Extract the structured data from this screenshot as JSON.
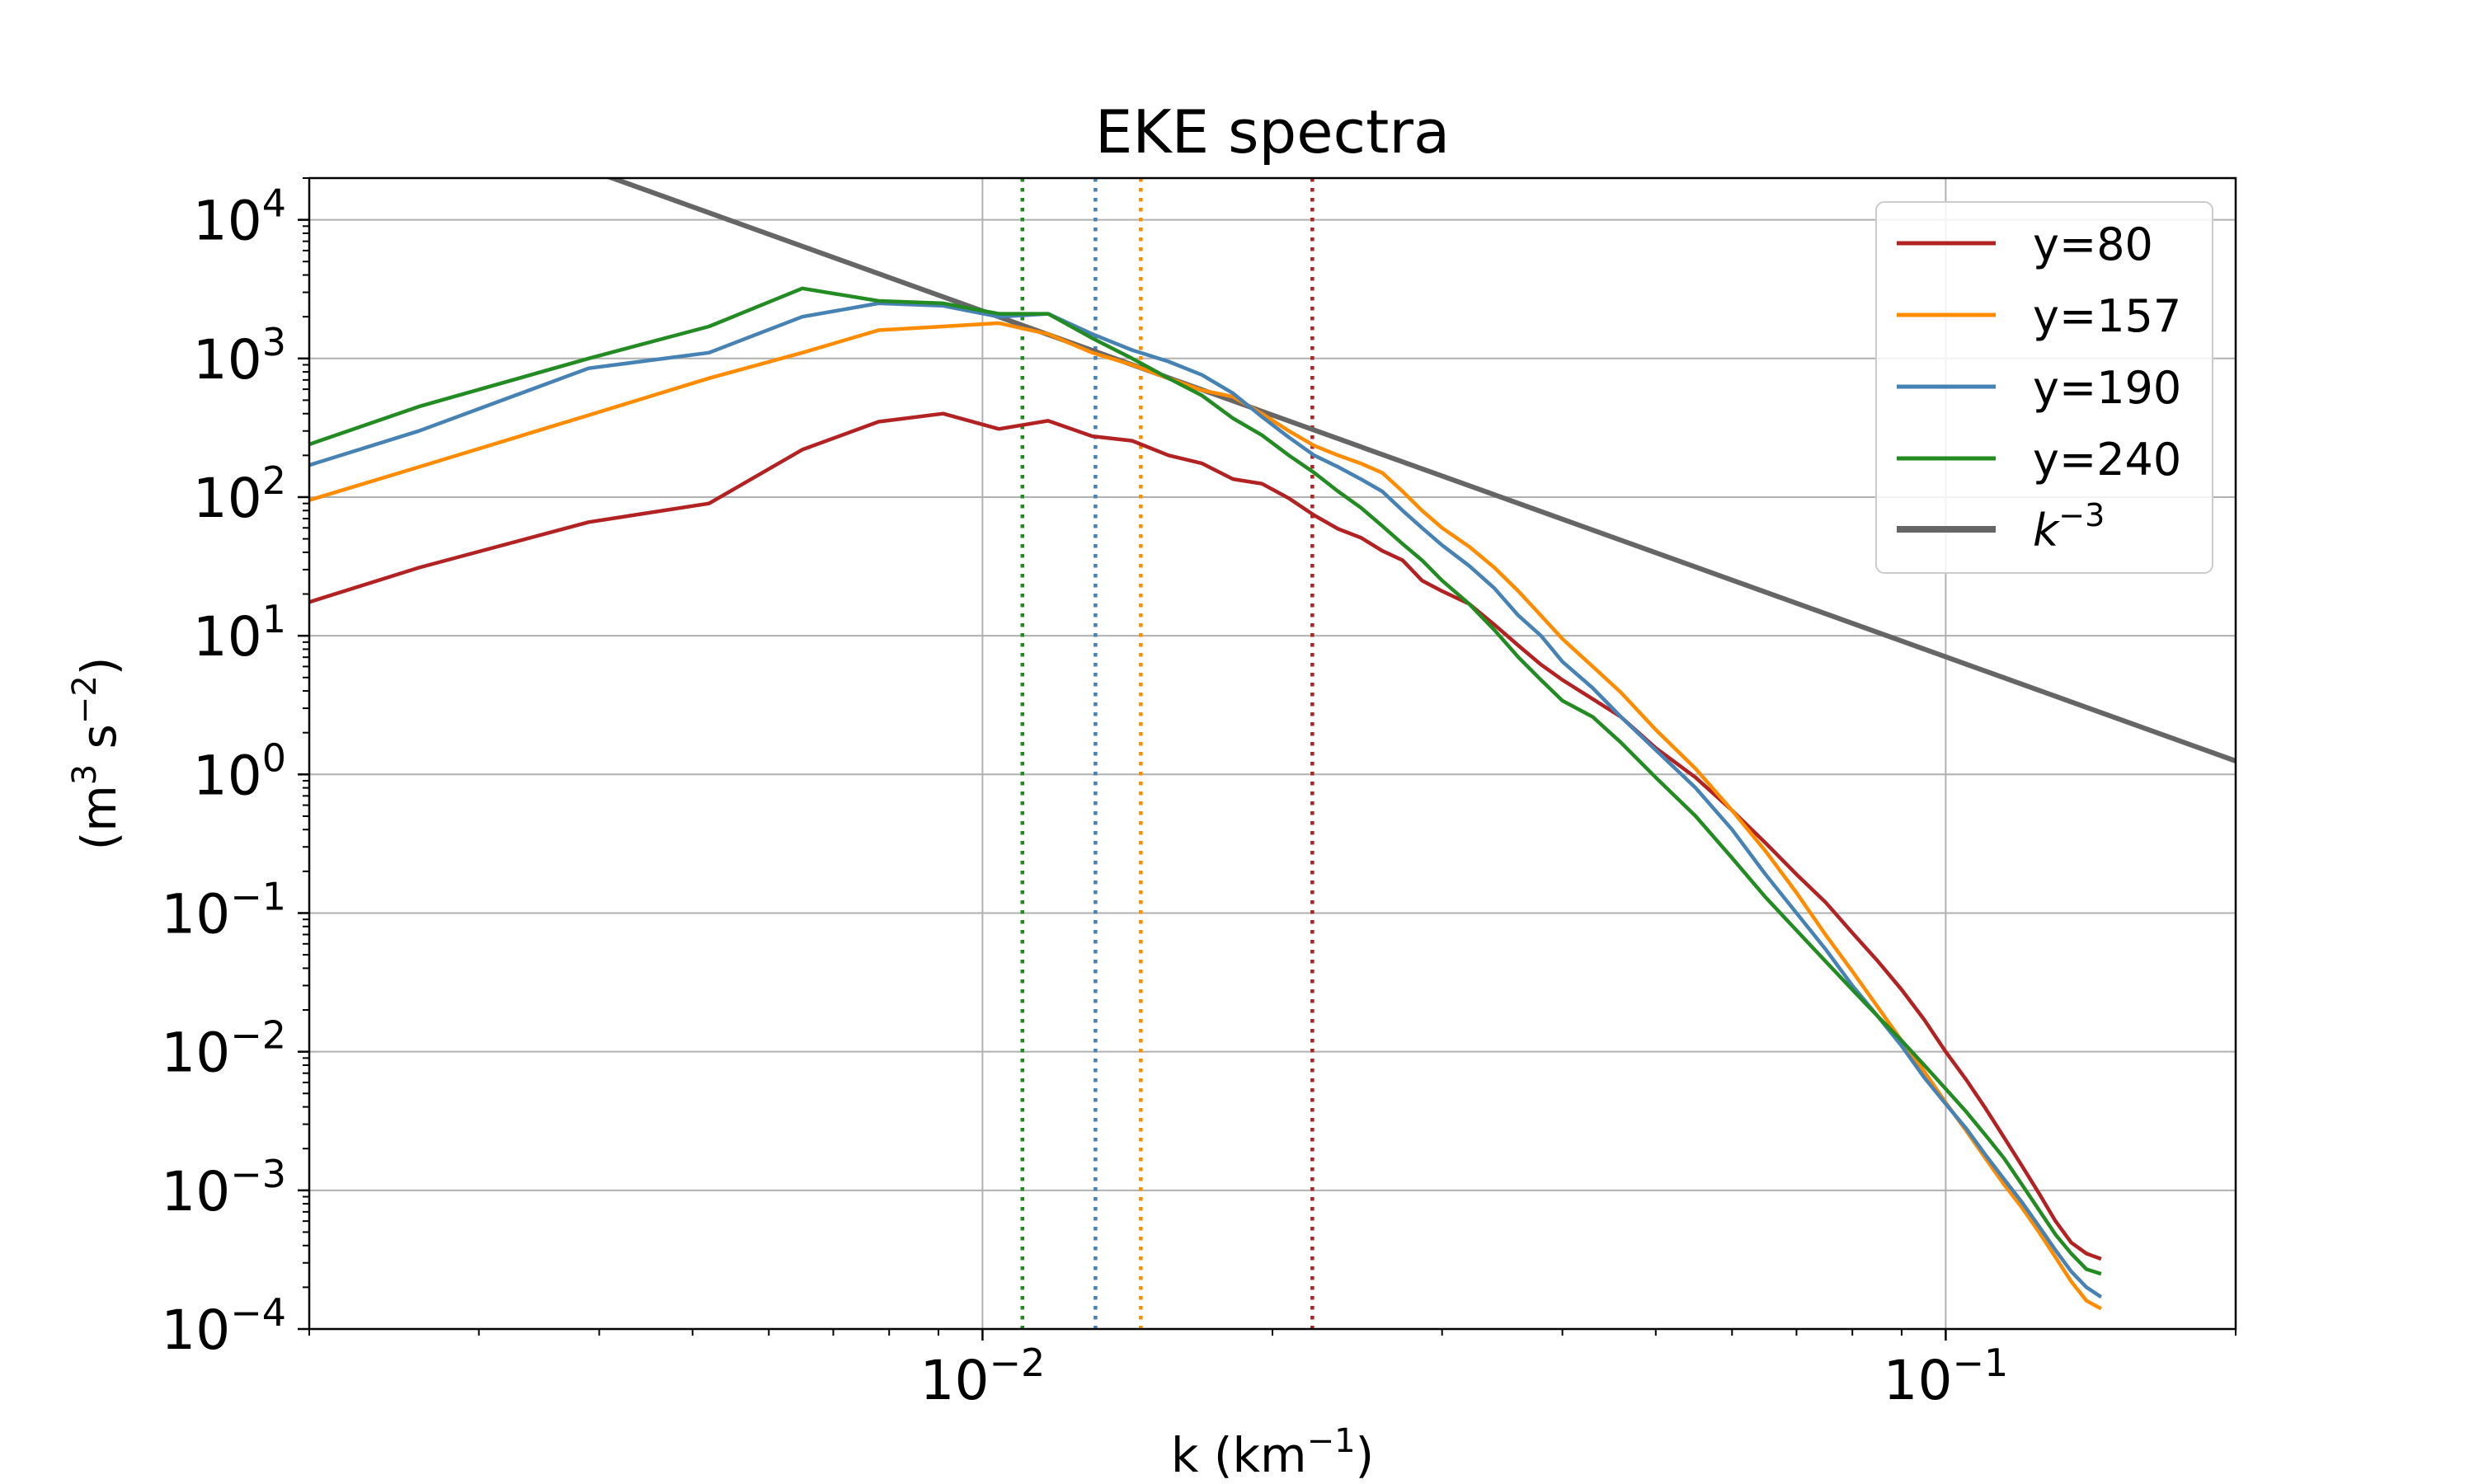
{
  "chart_data": {
    "type": "line",
    "title": "EKE spectra",
    "xlabel": {
      "base": "k (km",
      "exp": "−1",
      "tail": ")"
    },
    "ylabel": {
      "pre": "(m",
      "exp1": "3",
      "mid": " s",
      "exp2": "−2",
      "tail": ")"
    },
    "xscale": "log",
    "yscale": "log",
    "xlim": [
      0.002,
      0.2
    ],
    "ylim": [
      0.0001,
      20000
    ],
    "grid": true,
    "legend_position": "top-right",
    "x_ticks": [
      {
        "value": 0.01,
        "base": "10",
        "exp": "−2"
      },
      {
        "value": 0.1,
        "base": "10",
        "exp": "−1"
      }
    ],
    "y_ticks": [
      {
        "value": 10000,
        "base": "10",
        "exp": "4"
      },
      {
        "value": 1000,
        "base": "10",
        "exp": "3"
      },
      {
        "value": 100,
        "base": "10",
        "exp": "2"
      },
      {
        "value": 10,
        "base": "10",
        "exp": "1"
      },
      {
        "value": 1,
        "base": "10",
        "exp": "0"
      },
      {
        "value": 0.1,
        "base": "10",
        "exp": "−1"
      },
      {
        "value": 0.01,
        "base": "10",
        "exp": "−2"
      },
      {
        "value": 0.001,
        "base": "10",
        "exp": "−3"
      },
      {
        "value": 0.0001,
        "base": "10",
        "exp": "−4"
      }
    ],
    "series": [
      {
        "name": "y=80",
        "color": "#b22222",
        "points": [
          [
            0.002,
            17.5
          ],
          [
            0.0026,
            31
          ],
          [
            0.0039,
            66
          ],
          [
            0.0052,
            90
          ],
          [
            0.0065,
            220
          ],
          [
            0.0078,
            350
          ],
          [
            0.0091,
            400
          ],
          [
            0.0104,
            310
          ],
          [
            0.0117,
            355
          ],
          [
            0.013,
            275
          ],
          [
            0.0143,
            255
          ],
          [
            0.0156,
            200
          ],
          [
            0.0169,
            175
          ],
          [
            0.0182,
            135
          ],
          [
            0.0195,
            125
          ],
          [
            0.0208,
            98
          ],
          [
            0.0221,
            74
          ],
          [
            0.0234,
            59
          ],
          [
            0.0247,
            51
          ],
          [
            0.026,
            41
          ],
          [
            0.0273,
            35
          ],
          [
            0.0286,
            25
          ],
          [
            0.03,
            21
          ],
          [
            0.032,
            17
          ],
          [
            0.034,
            12
          ],
          [
            0.036,
            8.5
          ],
          [
            0.038,
            6.2
          ],
          [
            0.04,
            4.8
          ],
          [
            0.043,
            3.5
          ],
          [
            0.046,
            2.6
          ],
          [
            0.05,
            1.55
          ],
          [
            0.055,
            0.95
          ],
          [
            0.06,
            0.55
          ],
          [
            0.065,
            0.32
          ],
          [
            0.07,
            0.19
          ],
          [
            0.075,
            0.12
          ],
          [
            0.08,
            0.072
          ],
          [
            0.085,
            0.045
          ],
          [
            0.09,
            0.028
          ],
          [
            0.095,
            0.017
          ],
          [
            0.1,
            0.01
          ],
          [
            0.105,
            0.0063
          ],
          [
            0.11,
            0.0039
          ],
          [
            0.115,
            0.0024
          ],
          [
            0.12,
            0.0015
          ],
          [
            0.125,
            0.00095
          ],
          [
            0.13,
            0.0006
          ],
          [
            0.135,
            0.00042
          ],
          [
            0.14,
            0.00035
          ],
          [
            0.145,
            0.00032
          ]
        ]
      },
      {
        "name": "y=157",
        "color": "#ff8c00",
        "points": [
          [
            0.002,
            95
          ],
          [
            0.0026,
            165
          ],
          [
            0.0039,
            390
          ],
          [
            0.0052,
            720
          ],
          [
            0.0065,
            1100
          ],
          [
            0.0078,
            1600
          ],
          [
            0.0091,
            1700
          ],
          [
            0.0104,
            1800
          ],
          [
            0.0117,
            1500
          ],
          [
            0.013,
            1100
          ],
          [
            0.0143,
            900
          ],
          [
            0.0156,
            720
          ],
          [
            0.0169,
            590
          ],
          [
            0.0182,
            530
          ],
          [
            0.0195,
            400
          ],
          [
            0.0208,
            300
          ],
          [
            0.0221,
            235
          ],
          [
            0.0234,
            200
          ],
          [
            0.0247,
            175
          ],
          [
            0.026,
            150
          ],
          [
            0.0273,
            110
          ],
          [
            0.0286,
            80
          ],
          [
            0.03,
            60
          ],
          [
            0.032,
            44
          ],
          [
            0.034,
            31
          ],
          [
            0.036,
            21
          ],
          [
            0.038,
            14
          ],
          [
            0.04,
            9.5
          ],
          [
            0.043,
            6
          ],
          [
            0.046,
            3.9
          ],
          [
            0.05,
            2.1
          ],
          [
            0.055,
            1.1
          ],
          [
            0.06,
            0.55
          ],
          [
            0.065,
            0.28
          ],
          [
            0.07,
            0.14
          ],
          [
            0.075,
            0.07
          ],
          [
            0.08,
            0.038
          ],
          [
            0.085,
            0.021
          ],
          [
            0.09,
            0.012
          ],
          [
            0.095,
            0.0072
          ],
          [
            0.1,
            0.0043
          ],
          [
            0.105,
            0.0027
          ],
          [
            0.11,
            0.0017
          ],
          [
            0.115,
            0.0011
          ],
          [
            0.12,
            0.00075
          ],
          [
            0.125,
            0.0005
          ],
          [
            0.13,
            0.00033
          ],
          [
            0.135,
            0.00022
          ],
          [
            0.14,
            0.00016
          ],
          [
            0.145,
            0.00014
          ]
        ]
      },
      {
        "name": "y=190",
        "color": "#4682b4",
        "points": [
          [
            0.002,
            170
          ],
          [
            0.0026,
            300
          ],
          [
            0.0039,
            850
          ],
          [
            0.0052,
            1100
          ],
          [
            0.0065,
            2000
          ],
          [
            0.0078,
            2500
          ],
          [
            0.0091,
            2400
          ],
          [
            0.0104,
            2000
          ],
          [
            0.0117,
            2100
          ],
          [
            0.013,
            1500
          ],
          [
            0.0143,
            1150
          ],
          [
            0.0156,
            950
          ],
          [
            0.0169,
            760
          ],
          [
            0.0182,
            560
          ],
          [
            0.0195,
            380
          ],
          [
            0.0208,
            270
          ],
          [
            0.0221,
            200
          ],
          [
            0.0234,
            165
          ],
          [
            0.0247,
            135
          ],
          [
            0.026,
            110
          ],
          [
            0.0273,
            80
          ],
          [
            0.0286,
            60
          ],
          [
            0.03,
            45
          ],
          [
            0.032,
            32
          ],
          [
            0.034,
            22
          ],
          [
            0.036,
            14
          ],
          [
            0.038,
            10
          ],
          [
            0.04,
            6.5
          ],
          [
            0.043,
            4.2
          ],
          [
            0.046,
            2.6
          ],
          [
            0.05,
            1.5
          ],
          [
            0.055,
            0.8
          ],
          [
            0.06,
            0.4
          ],
          [
            0.065,
            0.19
          ],
          [
            0.07,
            0.1
          ],
          [
            0.075,
            0.055
          ],
          [
            0.08,
            0.03
          ],
          [
            0.085,
            0.018
          ],
          [
            0.09,
            0.011
          ],
          [
            0.095,
            0.0065
          ],
          [
            0.1,
            0.0042
          ],
          [
            0.105,
            0.0028
          ],
          [
            0.11,
            0.0018
          ],
          [
            0.115,
            0.0012
          ],
          [
            0.12,
            0.00082
          ],
          [
            0.125,
            0.00055
          ],
          [
            0.13,
            0.00037
          ],
          [
            0.135,
            0.00026
          ],
          [
            0.14,
            0.0002
          ],
          [
            0.145,
            0.00017
          ]
        ]
      },
      {
        "name": "y=240",
        "color": "#228b22",
        "points": [
          [
            0.002,
            240
          ],
          [
            0.0026,
            450
          ],
          [
            0.0039,
            1000
          ],
          [
            0.0052,
            1700
          ],
          [
            0.0065,
            3200
          ],
          [
            0.0078,
            2600
          ],
          [
            0.0091,
            2500
          ],
          [
            0.0104,
            2100
          ],
          [
            0.0117,
            2100
          ],
          [
            0.013,
            1400
          ],
          [
            0.0143,
            1000
          ],
          [
            0.0156,
            720
          ],
          [
            0.0169,
            540
          ],
          [
            0.0182,
            370
          ],
          [
            0.0195,
            280
          ],
          [
            0.0208,
            200
          ],
          [
            0.0221,
            150
          ],
          [
            0.0234,
            110
          ],
          [
            0.0247,
            84
          ],
          [
            0.026,
            62
          ],
          [
            0.0273,
            46
          ],
          [
            0.0286,
            35
          ],
          [
            0.03,
            25
          ],
          [
            0.032,
            17
          ],
          [
            0.034,
            11
          ],
          [
            0.036,
            7
          ],
          [
            0.038,
            4.8
          ],
          [
            0.04,
            3.4
          ],
          [
            0.043,
            2.6
          ],
          [
            0.046,
            1.7
          ],
          [
            0.05,
            0.95
          ],
          [
            0.055,
            0.5
          ],
          [
            0.06,
            0.25
          ],
          [
            0.065,
            0.13
          ],
          [
            0.07,
            0.075
          ],
          [
            0.075,
            0.045
          ],
          [
            0.08,
            0.028
          ],
          [
            0.085,
            0.018
          ],
          [
            0.09,
            0.012
          ],
          [
            0.095,
            0.008
          ],
          [
            0.1,
            0.0054
          ],
          [
            0.105,
            0.0037
          ],
          [
            0.11,
            0.0025
          ],
          [
            0.115,
            0.0017
          ],
          [
            0.12,
            0.0011
          ],
          [
            0.125,
            0.00072
          ],
          [
            0.13,
            0.00048
          ],
          [
            0.135,
            0.00035
          ],
          [
            0.14,
            0.00027
          ],
          [
            0.145,
            0.00025
          ]
        ]
      }
    ],
    "reference_line": {
      "label_base": "k",
      "label_exp": "−3",
      "color": "#666666",
      "points": [
        [
          0.0021,
          108000
        ],
        [
          0.2,
          1.25
        ]
      ]
    },
    "vertical_lines": [
      {
        "x": 0.011,
        "color": "#228b22"
      },
      {
        "x": 0.0131,
        "color": "#4682b4"
      },
      {
        "x": 0.0146,
        "color": "#ff8c00"
      },
      {
        "x": 0.022,
        "color": "#b22222"
      }
    ]
  }
}
